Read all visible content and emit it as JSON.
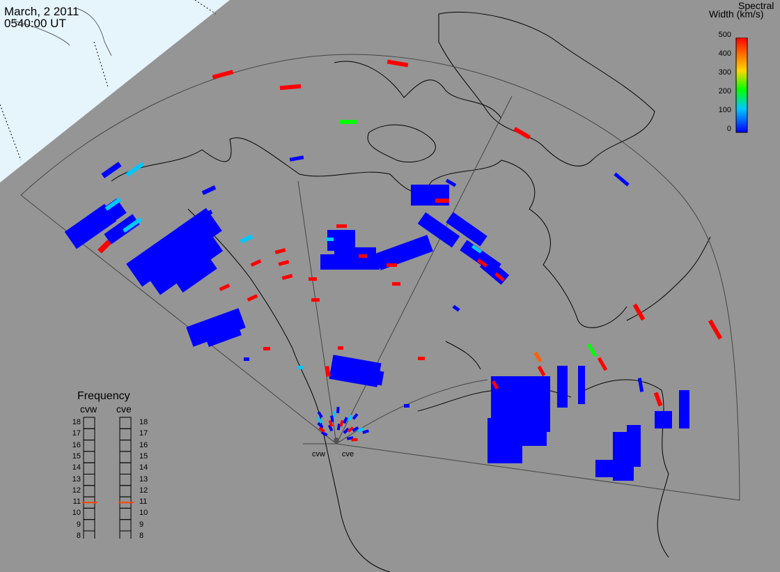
{
  "header": {
    "date": "March, 2 2011",
    "time": "0540:00 UT"
  },
  "colorbar": {
    "title_line1": "Spectral",
    "title_line2": "Width (km/s)",
    "ticks": [
      "500",
      "400",
      "300",
      "200",
      "100",
      "0"
    ],
    "colors": [
      "#0000ff",
      "#00c8ff",
      "#00ff00",
      "#ffd700",
      "#ff6000",
      "#ff0000"
    ]
  },
  "frequency": {
    "title": "Frequency",
    "radars": [
      "cvw",
      "cve"
    ],
    "ticks": [
      "18",
      "17",
      "16",
      "15",
      "14",
      "13",
      "12",
      "11",
      "10",
      "9",
      "8"
    ],
    "current_mhz": {
      "cvw": 11,
      "cve": 11
    }
  },
  "radar_labels": {
    "west": "cvw",
    "east": "cve"
  },
  "legend_colors": {
    "background": "#959595",
    "daylight": "#e6f4fc",
    "marker": "#ff4500"
  }
}
